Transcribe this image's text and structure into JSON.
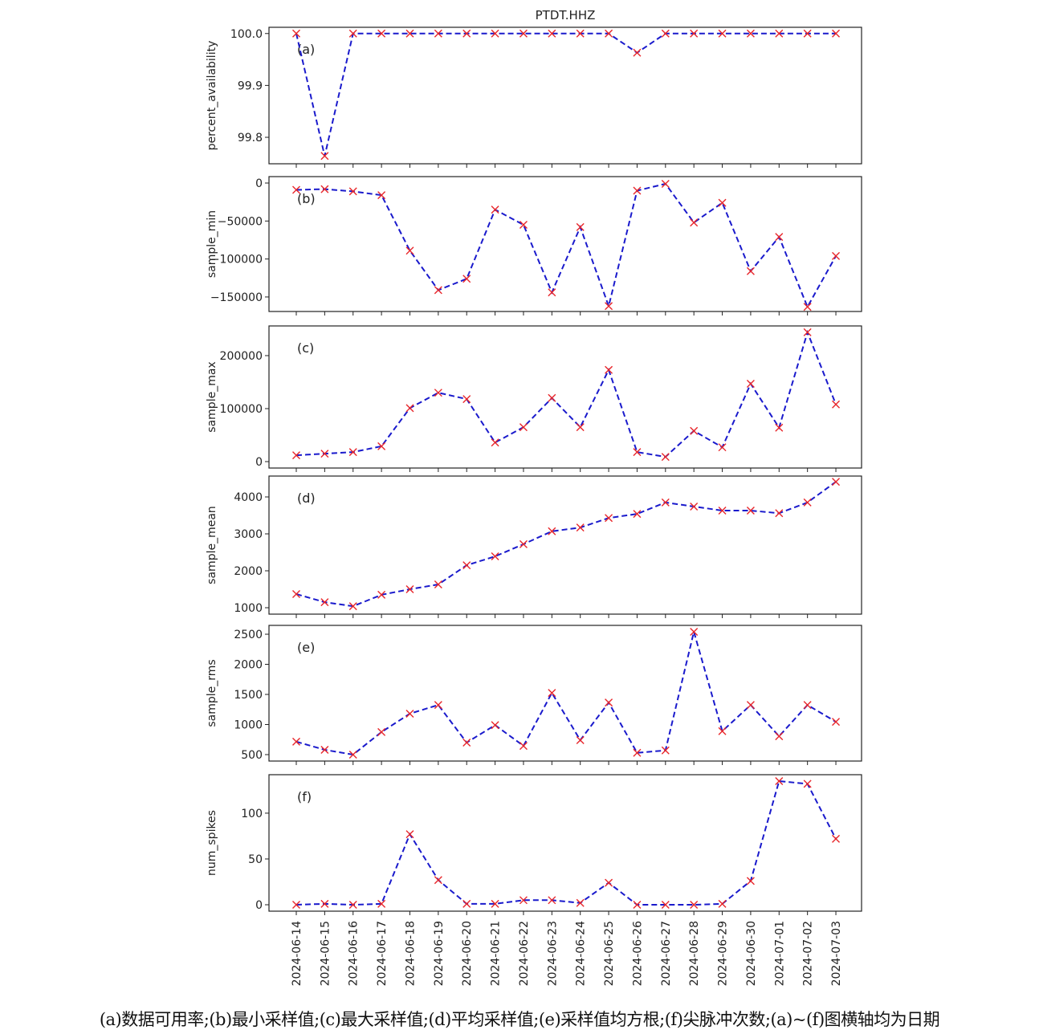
{
  "chart_data": {
    "type": "line",
    "title": "PTDT.HHZ",
    "xlabel": "",
    "x": [
      "2024-06-14",
      "2024-06-15",
      "2024-06-16",
      "2024-06-17",
      "2024-06-18",
      "2024-06-19",
      "2024-06-20",
      "2024-06-21",
      "2024-06-22",
      "2024-06-23",
      "2024-06-24",
      "2024-06-25",
      "2024-06-26",
      "2024-06-27",
      "2024-06-28",
      "2024-06-29",
      "2024-06-30",
      "2024-07-01",
      "2024-07-02",
      "2024-07-03"
    ],
    "line_color": "#1a1acc",
    "marker_color": "#e8262a",
    "marker": "x",
    "line_style": "dashed",
    "panels": [
      {
        "label": "(a)",
        "ylabel": "percent_availability",
        "ylim": [
          99.749,
          100.012
        ],
        "yticks": [
          99.8,
          99.9,
          100.0
        ],
        "ytick_labels": [
          "99.8",
          "99.9",
          "100.0"
        ],
        "values": [
          100.0,
          99.764,
          100.0,
          100.0,
          100.0,
          100.0,
          100.0,
          100.0,
          100.0,
          100.0,
          100.0,
          100.0,
          99.963,
          100.0,
          100.0,
          100.0,
          100.0,
          100.0,
          100.0,
          100.0
        ]
      },
      {
        "label": "(b)",
        "ylabel": "sample_min",
        "ylim": [
          -169100,
          8460
        ],
        "yticks": [
          -150000,
          -100000,
          -50000,
          0
        ],
        "ytick_labels": [
          "−150000",
          "−100000",
          "−50000",
          "0"
        ],
        "values": [
          -9000,
          -8000,
          -11000,
          -16000,
          -89000,
          -141000,
          -126000,
          -35000,
          -55000,
          -144000,
          -58000,
          -162000,
          -10000,
          -1000,
          -52000,
          -26000,
          -116000,
          -71000,
          -163000,
          -96000
        ]
      },
      {
        "label": "(c)",
        "ylabel": "sample_max",
        "ylim": [
          -12100,
          256000
        ],
        "yticks": [
          0,
          100000,
          200000
        ],
        "ytick_labels": [
          "0",
          "100000",
          "200000"
        ],
        "values": [
          12000,
          15000,
          18000,
          29000,
          101000,
          130000,
          118000,
          36000,
          65000,
          120000,
          65000,
          173000,
          18000,
          9000,
          58000,
          27000,
          147000,
          64000,
          244000,
          108000
        ]
      },
      {
        "label": "(d)",
        "ylabel": "sample_mean",
        "ylim": [
          826,
          4565
        ],
        "yticks": [
          1000,
          2000,
          3000,
          4000
        ],
        "ytick_labels": [
          "1000",
          "2000",
          "3000",
          "4000"
        ],
        "values": [
          1370,
          1150,
          1040,
          1350,
          1500,
          1630,
          2150,
          2390,
          2720,
          3070,
          3170,
          3430,
          3540,
          3850,
          3740,
          3630,
          3630,
          3560,
          3850,
          4410
        ]
      },
      {
        "label": "(e)",
        "ylabel": "sample_rms",
        "ylim": [
          393,
          2647
        ],
        "yticks": [
          500,
          1000,
          1500,
          2000,
          2500
        ],
        "ytick_labels": [
          "500",
          "1000",
          "1500",
          "2000",
          "2500"
        ],
        "values": [
          715,
          580,
          500,
          875,
          1180,
          1325,
          700,
          990,
          645,
          1525,
          740,
          1365,
          530,
          570,
          2540,
          890,
          1325,
          805,
          1325,
          1045
        ]
      },
      {
        "label": "(f)",
        "ylabel": "num_spikes",
        "ylim": [
          -7,
          142
        ],
        "yticks": [
          0,
          50,
          100
        ],
        "ytick_labels": [
          "0",
          "50",
          "100"
        ],
        "values": [
          0,
          1,
          0,
          1,
          77,
          27,
          1,
          1,
          5,
          5,
          2,
          24,
          0,
          0,
          0,
          1,
          26,
          135,
          132,
          72
        ]
      }
    ]
  },
  "caption": "(a)数据可用率;(b)最小采样值;(c)最大采样值;(d)平均采样值;(e)采样值均方根;(f)尖脉冲次数;(a)~(f)图横轴均为日期"
}
